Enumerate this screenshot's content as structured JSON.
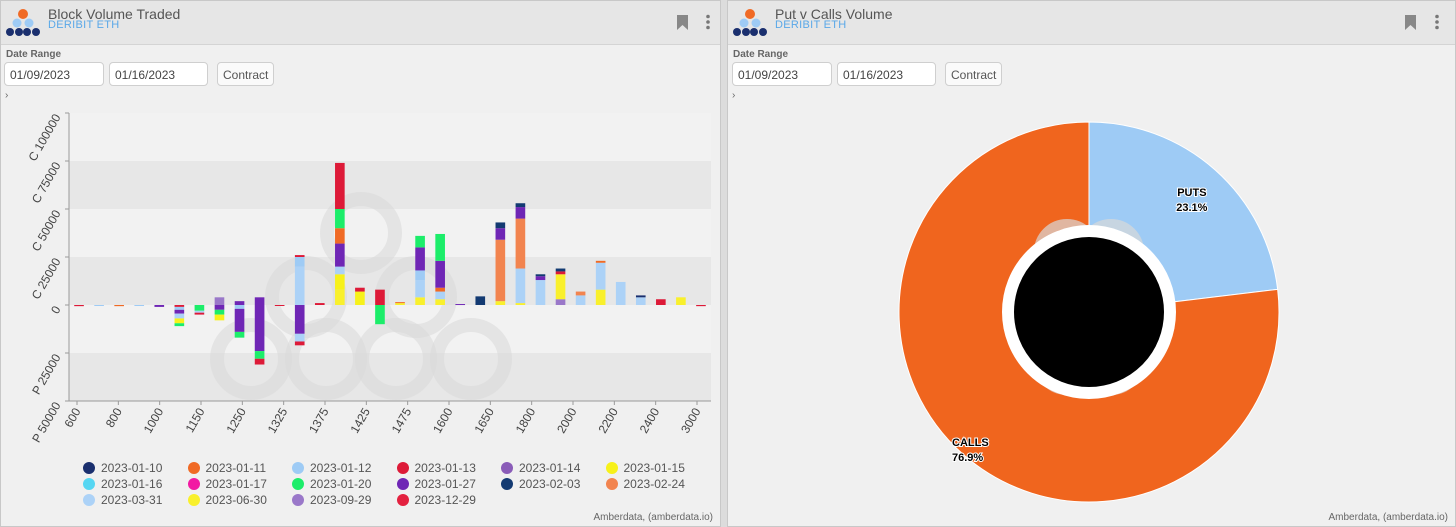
{
  "left_panel": {
    "title": "Block Volume Traded",
    "subtitle": "DERIBIT ETH",
    "date_range_label": "Date Range",
    "start_date": "01/09/2023",
    "end_date": "01/16/2023",
    "contract_label": "Contract",
    "expand_glyph": "›",
    "footer": "Amberdata, (amberdata.io)"
  },
  "right_panel": {
    "title": "Put v Calls Volume",
    "subtitle": "DERIBIT ETH",
    "date_range_label": "Date Range",
    "start_date": "01/09/2023",
    "end_date": "01/16/2023",
    "contract_label": "Contract",
    "expand_glyph": "›",
    "footer": "Amberdata, (amberdata.io)"
  },
  "chart_data": [
    {
      "type": "bar",
      "stacked": true,
      "y_tick_labels": [
        "C 100000",
        "C 75000",
        "C 50000",
        "C 25000",
        "0",
        "P 25000",
        "P 50000"
      ],
      "ylim": [
        -50000,
        100000
      ],
      "x_tick_labels": [
        "600",
        "800",
        "1000",
        "1150",
        "1250",
        "1325",
        "1375",
        "1425",
        "1475",
        "1600",
        "1650",
        "1800",
        "2000",
        "2200",
        "2400",
        "3000"
      ],
      "grid": "horizontal bands",
      "legend_position": "bottom",
      "legend": [
        {
          "name": "2023-01-10",
          "color": "#1a2f6e"
        },
        {
          "name": "2023-01-11",
          "color": "#f06a25"
        },
        {
          "name": "2023-01-12",
          "color": "#9ecbf5"
        },
        {
          "name": "2023-01-13",
          "color": "#dd1a38"
        },
        {
          "name": "2023-01-14",
          "color": "#8a5cb8"
        },
        {
          "name": "2023-01-15",
          "color": "#f7f11a"
        },
        {
          "name": "2023-01-16",
          "color": "#56d6f2"
        },
        {
          "name": "2023-01-17",
          "color": "#f21aa3"
        },
        {
          "name": "2023-01-20",
          "color": "#1ced6a"
        },
        {
          "name": "2023-01-27",
          "color": "#6f26b5"
        },
        {
          "name": "2023-02-03",
          "color": "#133a72"
        },
        {
          "name": "2023-02-24",
          "color": "#f2844f"
        },
        {
          "name": "2023-03-31",
          "color": "#acd2f7"
        },
        {
          "name": "2023-06-30",
          "color": "#f9f02c"
        },
        {
          "name": "2023-09-29",
          "color": "#9a78c9"
        },
        {
          "name": "2023-12-29",
          "color": "#e3213f"
        }
      ],
      "bars": [
        {
          "segs": [
            [
              3,
              -600
            ]
          ]
        },
        {
          "segs": [
            [
              2,
              -500
            ]
          ]
        },
        {
          "segs": [
            [
              1,
              -600
            ]
          ]
        },
        {
          "segs": [
            [
              2,
              -300
            ]
          ]
        },
        {
          "segs": [
            [
              9,
              -1000
            ]
          ]
        },
        {
          "segs": [
            [
              3,
              -1000
            ],
            [
              2,
              -1500
            ],
            [
              9,
              -2000
            ],
            [
              12,
              -2500
            ],
            [
              5,
              -2500
            ],
            [
              8,
              -1500
            ]
          ]
        },
        {
          "segs": [
            [
              8,
              -3000
            ],
            [
              12,
              -1000
            ],
            [
              3,
              -1000
            ]
          ]
        },
        {
          "segs": [
            [
              14,
              4000
            ],
            [
              9,
              -2500
            ],
            [
              8,
              -2500
            ],
            [
              5,
              -3000
            ]
          ]
        },
        {
          "segs": [
            [
              9,
              2000
            ],
            [
              2,
              -2000
            ],
            [
              9,
              -12000
            ],
            [
              8,
              -3000
            ]
          ]
        },
        {
          "segs": [
            [
              9,
              4000
            ],
            [
              9,
              -24000
            ],
            [
              8,
              -4000
            ],
            [
              3,
              -3000
            ]
          ]
        },
        {
          "segs": [
            [
              3,
              -500
            ]
          ]
        },
        {
          "segs": [
            [
              12,
              20000
            ],
            [
              2,
              5000
            ],
            [
              3,
              1000
            ],
            [
              9,
              -15000
            ],
            [
              12,
              -4000
            ],
            [
              3,
              -2000
            ]
          ]
        },
        {
          "segs": [
            [
              3,
              1000
            ]
          ]
        },
        {
          "segs": [
            [
              13,
              8000
            ],
            [
              5,
              8000
            ],
            [
              12,
              4000
            ],
            [
              9,
              12000
            ],
            [
              1,
              8000
            ],
            [
              8,
              10000
            ],
            [
              3,
              24000
            ]
          ]
        },
        {
          "segs": [
            [
              5,
              7000
            ],
            [
              3,
              2000
            ]
          ]
        },
        {
          "segs": [
            [
              3,
              8000
            ],
            [
              8,
              -10000
            ]
          ]
        },
        {
          "segs": [
            [
              13,
              1000
            ],
            [
              1,
              500
            ]
          ]
        },
        {
          "segs": [
            [
              13,
              4000
            ],
            [
              12,
              9000
            ],
            [
              2,
              5000
            ],
            [
              9,
              12000
            ],
            [
              8,
              6000
            ]
          ]
        },
        {
          "segs": [
            [
              13,
              3000
            ],
            [
              12,
              4000
            ],
            [
              1,
              2000
            ],
            [
              9,
              14000
            ],
            [
              8,
              14000
            ]
          ]
        },
        {
          "segs": [
            [
              9,
              500
            ]
          ]
        },
        {
          "segs": [
            [
              10,
              4500
            ]
          ]
        },
        {
          "segs": [
            [
              13,
              2000
            ],
            [
              11,
              32000
            ],
            [
              9,
              6000
            ],
            [
              10,
              3000
            ]
          ]
        },
        {
          "segs": [
            [
              13,
              1000
            ],
            [
              12,
              18000
            ],
            [
              11,
              26000
            ],
            [
              9,
              6000
            ],
            [
              10,
              2000
            ]
          ]
        },
        {
          "segs": [
            [
              12,
              13000
            ],
            [
              9,
              2000
            ],
            [
              10,
              1000
            ]
          ]
        },
        {
          "segs": [
            [
              14,
              3000
            ],
            [
              13,
              13000
            ],
            [
              3,
              1500
            ],
            [
              10,
              1500
            ]
          ]
        },
        {
          "segs": [
            [
              12,
              5000
            ],
            [
              11,
              2000
            ]
          ]
        },
        {
          "segs": [
            [
              13,
              8000
            ],
            [
              12,
              14000
            ],
            [
              1,
              1000
            ]
          ]
        },
        {
          "segs": [
            [
              12,
              12000
            ]
          ]
        },
        {
          "segs": [
            [
              12,
              4000
            ],
            [
              0,
              1000
            ]
          ]
        },
        {
          "segs": [
            [
              3,
              3000
            ]
          ]
        },
        {
          "segs": [
            [
              13,
              4000
            ]
          ]
        },
        {
          "segs": [
            [
              3,
              -600
            ]
          ]
        }
      ]
    },
    {
      "type": "pie",
      "donut": true,
      "slices": [
        {
          "label": "PUTS",
          "value": 23.1,
          "display": "23.1%",
          "color": "#9ecbf5"
        },
        {
          "label": "CALLS",
          "value": 76.9,
          "display": "76.9%",
          "color": "#f0651e"
        }
      ]
    }
  ]
}
